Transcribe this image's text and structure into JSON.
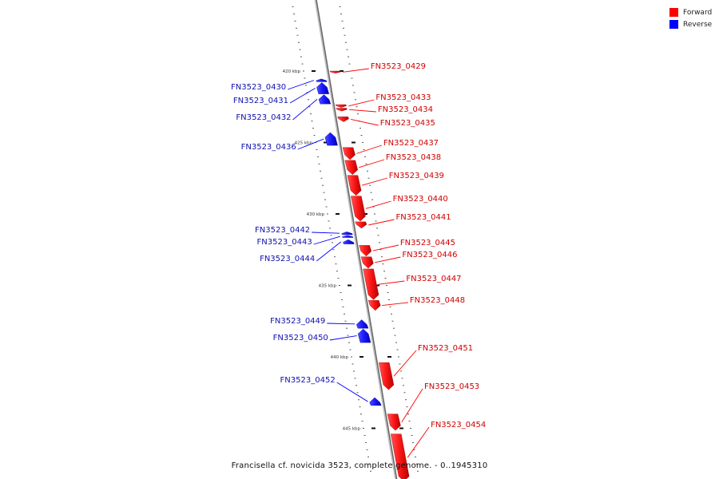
{
  "legend": {
    "forward": {
      "label": "Forward",
      "color": "#ff0000"
    },
    "reverse": {
      "label": "Reverse",
      "color": "#0000ff"
    }
  },
  "caption": "Francisella cf. novicida 3523, complete genome. - 0..1945310",
  "ticks": [
    {
      "kbp": 420,
      "label": "420 kbp"
    },
    {
      "kbp": 425,
      "label": "425 kbp"
    },
    {
      "kbp": 430,
      "label": "430 kbp"
    },
    {
      "kbp": 435,
      "label": "435 kbp"
    },
    {
      "kbp": 440,
      "label": "440 kbp"
    },
    {
      "kbp": 445,
      "label": "445 kbp"
    }
  ],
  "genes": [
    {
      "id": "FN3523_0429",
      "strand": "forward",
      "start_kbp": 420.0,
      "end_kbp": 420.15
    },
    {
      "id": "FN3523_0430",
      "strand": "reverse",
      "start_kbp": 420.55,
      "end_kbp": 420.75
    },
    {
      "id": "FN3523_0431",
      "strand": "reverse",
      "start_kbp": 420.8,
      "end_kbp": 421.6
    },
    {
      "id": "FN3523_0432",
      "strand": "reverse",
      "start_kbp": 421.65,
      "end_kbp": 422.3
    },
    {
      "id": "FN3523_0433",
      "strand": "forward",
      "start_kbp": 422.35,
      "end_kbp": 422.55
    },
    {
      "id": "FN3523_0434",
      "strand": "forward",
      "start_kbp": 422.6,
      "end_kbp": 422.8
    },
    {
      "id": "FN3523_0435",
      "strand": "forward",
      "start_kbp": 423.2,
      "end_kbp": 423.55
    },
    {
      "id": "FN3523_0436",
      "strand": "reverse",
      "start_kbp": 424.3,
      "end_kbp": 425.2
    },
    {
      "id": "FN3523_0437",
      "strand": "forward",
      "start_kbp": 425.35,
      "end_kbp": 426.2
    },
    {
      "id": "FN3523_0438",
      "strand": "forward",
      "start_kbp": 426.25,
      "end_kbp": 427.25
    },
    {
      "id": "FN3523_0439",
      "strand": "forward",
      "start_kbp": 427.3,
      "end_kbp": 428.7
    },
    {
      "id": "FN3523_0440",
      "strand": "forward",
      "start_kbp": 428.75,
      "end_kbp": 430.5
    },
    {
      "id": "FN3523_0441",
      "strand": "forward",
      "start_kbp": 430.55,
      "end_kbp": 431.0
    },
    {
      "id": "FN3523_0442",
      "strand": "reverse",
      "start_kbp": 431.25,
      "end_kbp": 431.45
    },
    {
      "id": "FN3523_0443",
      "strand": "reverse",
      "start_kbp": 431.5,
      "end_kbp": 431.65
    },
    {
      "id": "FN3523_0444",
      "strand": "reverse",
      "start_kbp": 431.8,
      "end_kbp": 432.1
    },
    {
      "id": "FN3523_0445",
      "strand": "forward",
      "start_kbp": 432.2,
      "end_kbp": 432.95
    },
    {
      "id": "FN3523_0446",
      "strand": "forward",
      "start_kbp": 433.0,
      "end_kbp": 433.8
    },
    {
      "id": "FN3523_0447",
      "strand": "forward",
      "start_kbp": 433.85,
      "end_kbp": 436.0
    },
    {
      "id": "FN3523_0448",
      "strand": "forward",
      "start_kbp": 436.05,
      "end_kbp": 436.75
    },
    {
      "id": "FN3523_0449",
      "strand": "reverse",
      "start_kbp": 437.4,
      "end_kbp": 438.0
    },
    {
      "id": "FN3523_0450",
      "strand": "reverse",
      "start_kbp": 438.05,
      "end_kbp": 439.0
    },
    {
      "id": "FN3523_0451",
      "strand": "forward",
      "start_kbp": 440.4,
      "end_kbp": 442.3
    },
    {
      "id": "FN3523_0452",
      "strand": "reverse",
      "start_kbp": 442.85,
      "end_kbp": 443.4
    },
    {
      "id": "FN3523_0453",
      "strand": "forward",
      "start_kbp": 444.0,
      "end_kbp": 445.15
    },
    {
      "id": "FN3523_0454",
      "strand": "forward",
      "start_kbp": 445.4,
      "end_kbp": 448.7
    }
  ]
}
